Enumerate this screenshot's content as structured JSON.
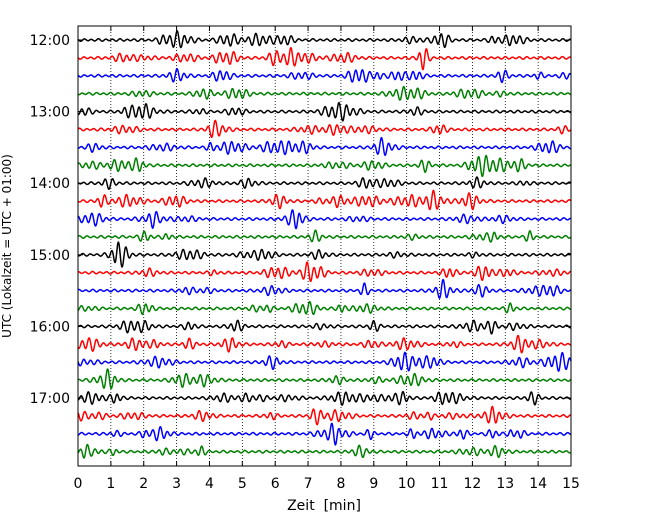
{
  "chart_data": {
    "type": "line",
    "title": "",
    "xlabel": "Zeit  [min]",
    "ylabel": "UTC (Lokalzeit = UTC + 01:00)",
    "xlim": [
      0,
      15
    ],
    "x_ticks": [
      0,
      1,
      2,
      3,
      4,
      5,
      6,
      7,
      8,
      9,
      10,
      11,
      12,
      13,
      14,
      15
    ],
    "y_tick_labels": [
      "12:00",
      "13:00",
      "14:00",
      "15:00",
      "16:00",
      "17:00"
    ],
    "trace_interval_min": 15,
    "trace_start": "12:00",
    "trace_count": 24,
    "trace_colors": [
      "#000000",
      "#ff0000",
      "#0000ff",
      "#008000"
    ],
    "vertical_grid": "dotted",
    "series": [
      {
        "start": "12:00",
        "color": "#000000"
      },
      {
        "start": "12:15",
        "color": "#ff0000"
      },
      {
        "start": "12:30",
        "color": "#0000ff"
      },
      {
        "start": "12:45",
        "color": "#008000"
      },
      {
        "start": "13:00",
        "color": "#000000"
      },
      {
        "start": "13:15",
        "color": "#ff0000"
      },
      {
        "start": "13:30",
        "color": "#0000ff"
      },
      {
        "start": "13:45",
        "color": "#008000"
      },
      {
        "start": "14:00",
        "color": "#000000"
      },
      {
        "start": "14:15",
        "color": "#ff0000"
      },
      {
        "start": "14:30",
        "color": "#0000ff"
      },
      {
        "start": "14:45",
        "color": "#008000"
      },
      {
        "start": "15:00",
        "color": "#000000"
      },
      {
        "start": "15:15",
        "color": "#ff0000"
      },
      {
        "start": "15:30",
        "color": "#0000ff"
      },
      {
        "start": "15:45",
        "color": "#008000"
      },
      {
        "start": "16:00",
        "color": "#000000"
      },
      {
        "start": "16:15",
        "color": "#ff0000"
      },
      {
        "start": "16:30",
        "color": "#0000ff"
      },
      {
        "start": "16:45",
        "color": "#008000"
      },
      {
        "start": "17:00",
        "color": "#000000"
      },
      {
        "start": "17:15",
        "color": "#ff0000"
      },
      {
        "start": "17:30",
        "color": "#0000ff"
      },
      {
        "start": "17:45",
        "color": "#008000"
      }
    ]
  }
}
